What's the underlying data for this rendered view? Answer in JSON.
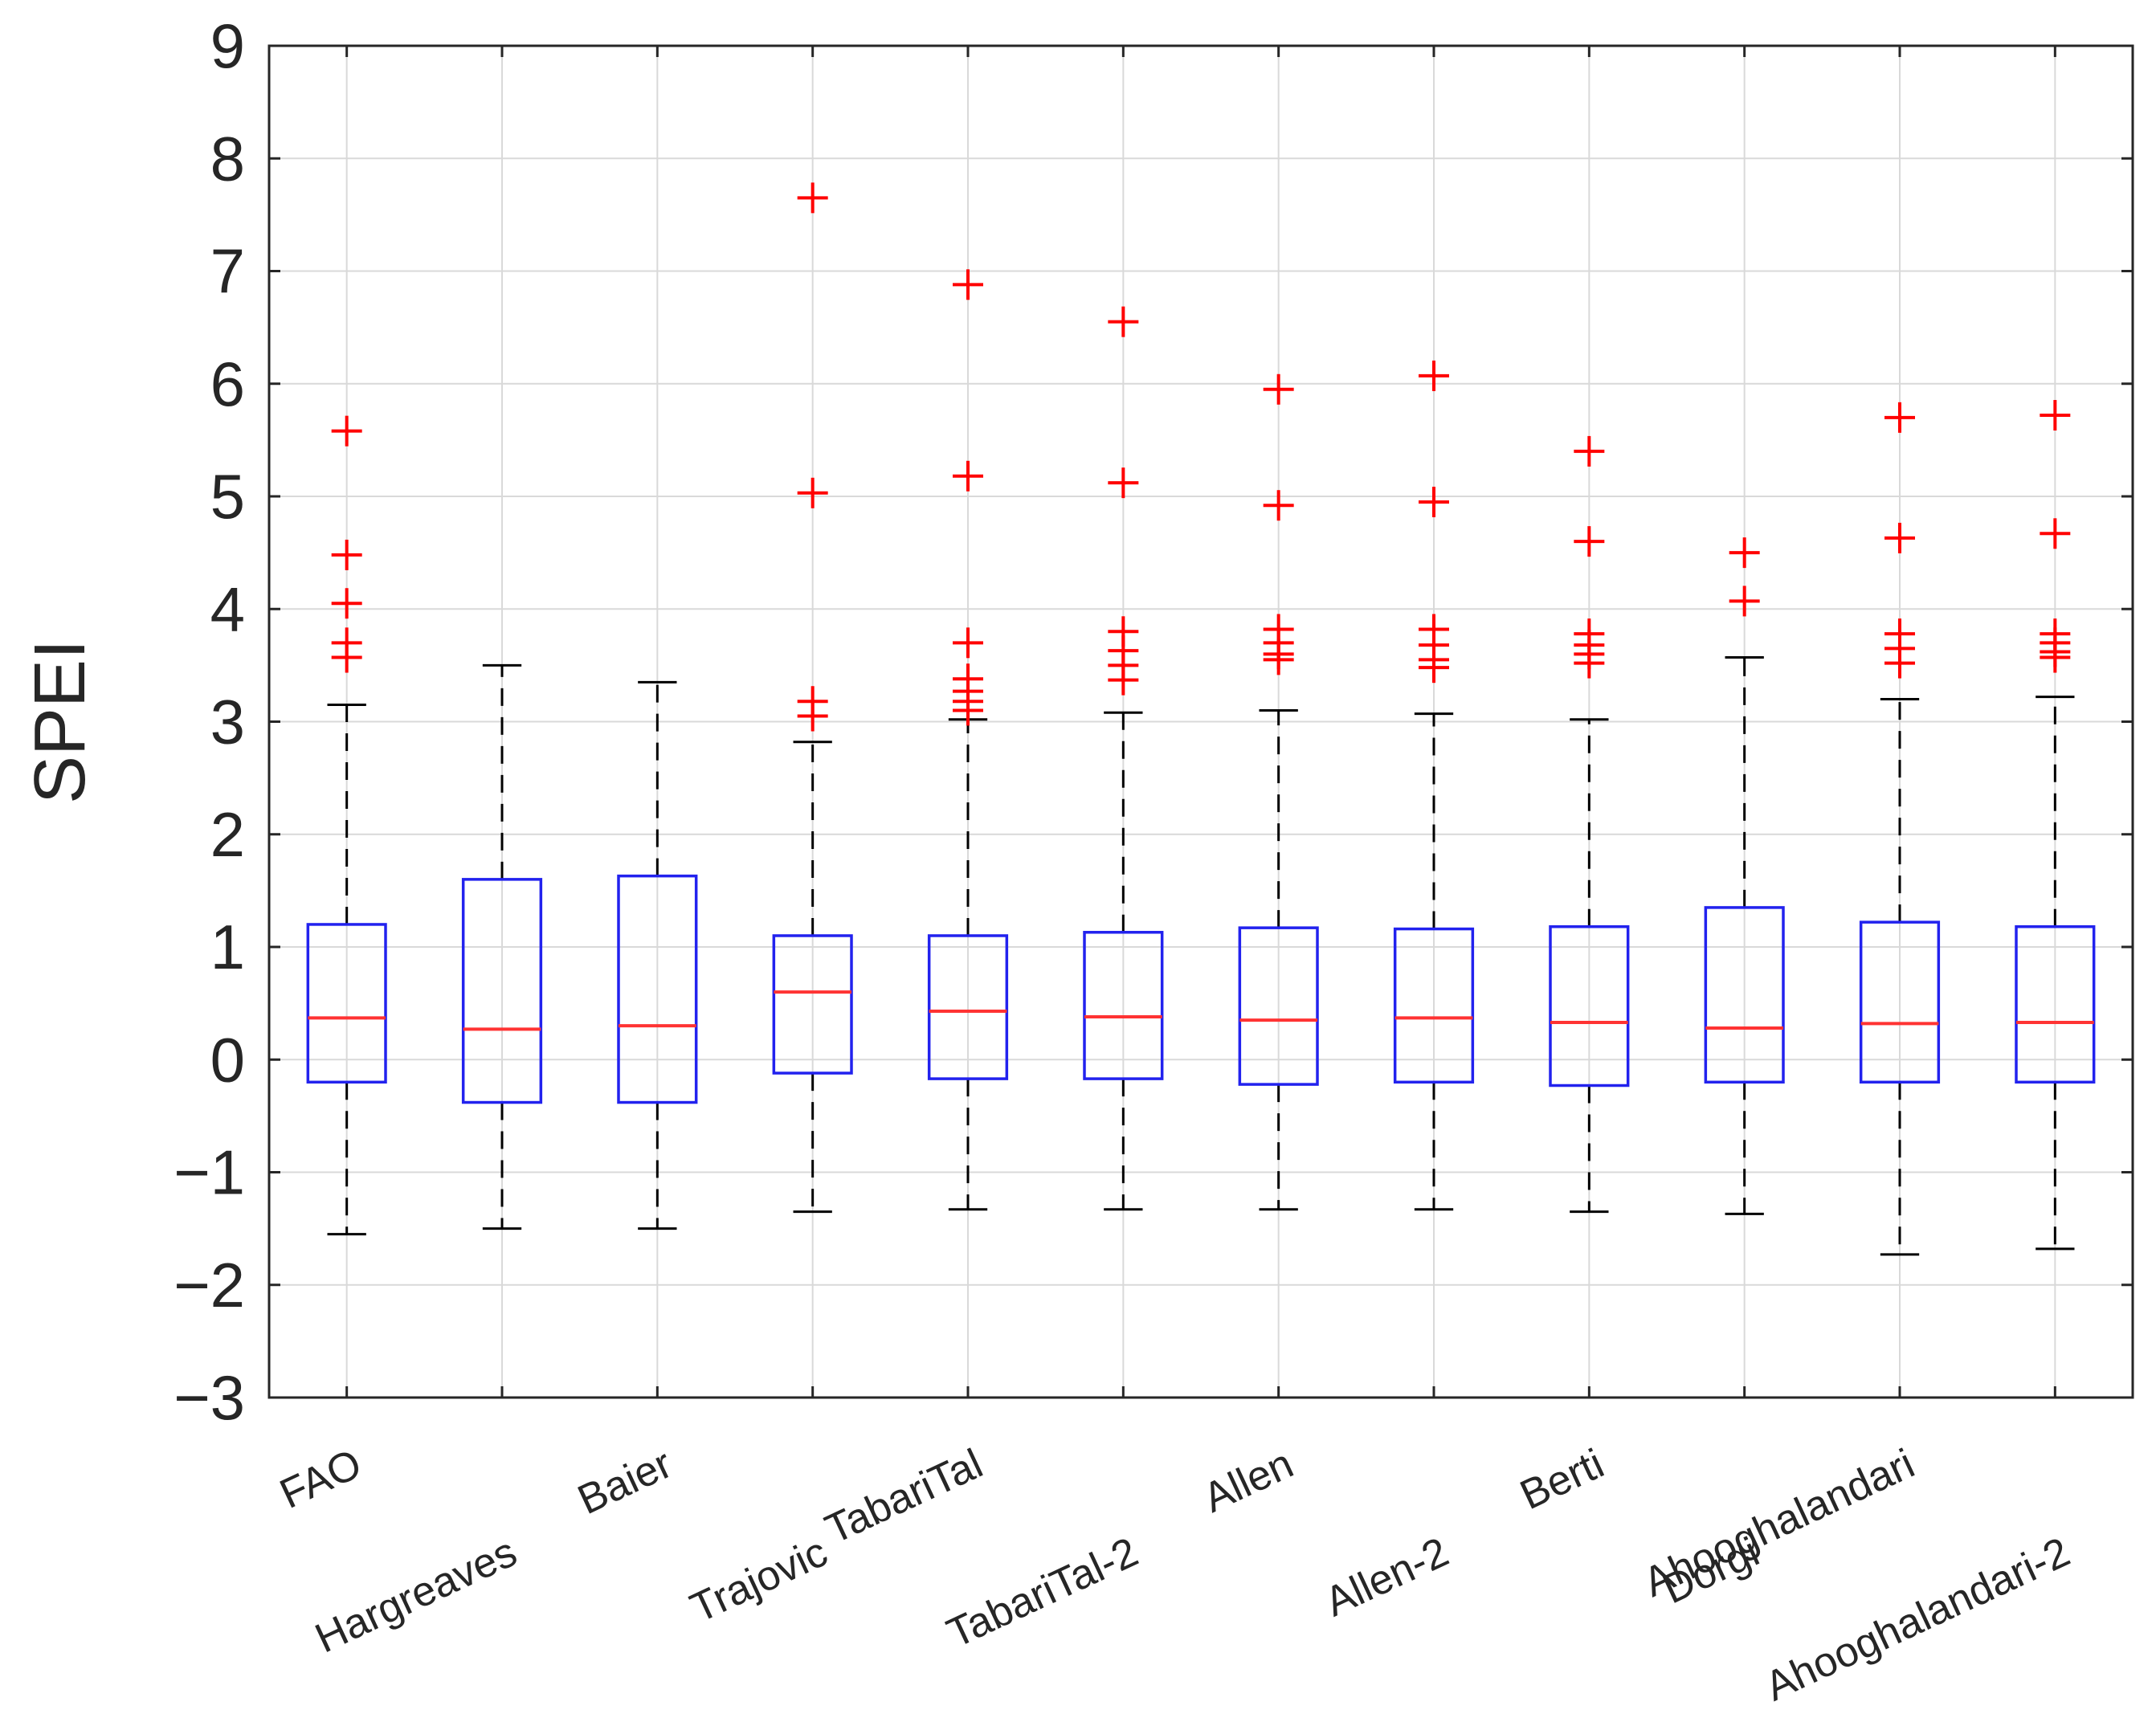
{
  "chart_data": {
    "type": "box",
    "ylabel": "SPEI",
    "xlabel": "",
    "title": "",
    "ylim": [
      -3,
      9
    ],
    "yticks": [
      -3,
      -2,
      -1,
      0,
      1,
      2,
      3,
      4,
      5,
      6,
      7,
      8,
      9
    ],
    "ytick_labels": [
      "−3",
      "−2",
      "−1",
      "0",
      "1",
      "2",
      "3",
      "4",
      "5",
      "6",
      "7",
      "8",
      "9"
    ],
    "grid": true,
    "colors": {
      "box": "#2222ee",
      "median": "#ff3333",
      "whisker": "#000000",
      "outlier": "#ff0000",
      "grid": "#d9d9d9",
      "axis": "#262626"
    },
    "categories": [
      "FAO",
      "Hargreaves",
      "Baier",
      "Trajovic",
      "TabariTal",
      "TabariTal-2",
      "Allen",
      "Allen-2",
      "Berti",
      "Dorgi",
      "Ahooghalandari",
      "Ahooghalandari-2"
    ],
    "boxes": [
      {
        "name": "FAO",
        "whisker_low": -1.55,
        "q1": -0.2,
        "median": 0.37,
        "q3": 1.2,
        "whisker_high": 3.15,
        "outliers": [
          3.57,
          3.7,
          4.05,
          4.48,
          5.58
        ]
      },
      {
        "name": "Hargreaves",
        "whisker_low": -1.5,
        "q1": -0.38,
        "median": 0.27,
        "q3": 1.6,
        "whisker_high": 3.5,
        "outliers": []
      },
      {
        "name": "Baier",
        "whisker_low": -1.5,
        "q1": -0.38,
        "median": 0.3,
        "q3": 1.63,
        "whisker_high": 3.35,
        "outliers": []
      },
      {
        "name": "Trajovic",
        "whisker_low": -1.35,
        "q1": -0.12,
        "median": 0.6,
        "q3": 1.1,
        "whisker_high": 2.82,
        "outliers": [
          3.05,
          3.18,
          5.03,
          7.65
        ]
      },
      {
        "name": "TabariTal",
        "whisker_low": -1.33,
        "q1": -0.17,
        "median": 0.43,
        "q3": 1.1,
        "whisker_high": 3.02,
        "outliers": [
          3.1,
          3.18,
          3.27,
          3.38,
          3.7,
          5.18,
          6.88
        ]
      },
      {
        "name": "TabariTal-2",
        "whisker_low": -1.33,
        "q1": -0.17,
        "median": 0.38,
        "q3": 1.13,
        "whisker_high": 3.08,
        "outliers": [
          3.37,
          3.5,
          3.63,
          3.8,
          5.12,
          6.55
        ]
      },
      {
        "name": "Allen",
        "whisker_low": -1.33,
        "q1": -0.22,
        "median": 0.35,
        "q3": 1.17,
        "whisker_high": 3.1,
        "outliers": [
          3.55,
          3.6,
          3.7,
          3.82,
          4.92,
          5.95
        ]
      },
      {
        "name": "Allen-2",
        "whisker_low": -1.33,
        "q1": -0.2,
        "median": 0.37,
        "q3": 1.16,
        "whisker_high": 3.07,
        "outliers": [
          3.48,
          3.55,
          3.68,
          3.82,
          4.95,
          6.07
        ]
      },
      {
        "name": "Berti",
        "whisker_low": -1.35,
        "q1": -0.23,
        "median": 0.33,
        "q3": 1.18,
        "whisker_high": 3.02,
        "outliers": [
          3.52,
          3.6,
          3.68,
          3.78,
          4.6,
          5.4
        ]
      },
      {
        "name": "Dorgi",
        "whisker_low": -1.37,
        "q1": -0.2,
        "median": 0.28,
        "q3": 1.35,
        "whisker_high": 3.57,
        "outliers": [
          4.07,
          4.5
        ]
      },
      {
        "name": "Ahooghalandari",
        "whisker_low": -1.73,
        "q1": -0.2,
        "median": 0.32,
        "q3": 1.22,
        "whisker_high": 3.2,
        "outliers": [
          3.52,
          3.65,
          3.78,
          4.63,
          5.7
        ]
      },
      {
        "name": "Ahooghalandari-2",
        "whisker_low": -1.68,
        "q1": -0.2,
        "median": 0.33,
        "q3": 1.18,
        "whisker_high": 3.22,
        "outliers": [
          3.57,
          3.62,
          3.7,
          3.78,
          4.67,
          5.72
        ]
      }
    ]
  }
}
